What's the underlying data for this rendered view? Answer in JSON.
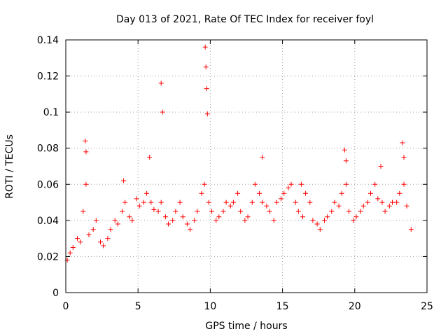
{
  "chart_data": {
    "type": "scatter",
    "title": "Day 013 of 2021, Rate Of TEC Index for receiver foyl",
    "xlabel": "GPS time / hours",
    "ylabel": "ROTI / TECUs",
    "xlim": [
      0,
      25
    ],
    "ylim": [
      0,
      0.14
    ],
    "xticks": [
      0,
      5,
      10,
      15,
      20,
      25
    ],
    "xtick_labels": [
      "0",
      "5",
      "10",
      "15",
      "20",
      "25"
    ],
    "yticks": [
      0,
      0.02,
      0.04,
      0.06,
      0.08,
      0.1,
      0.12,
      0.14
    ],
    "ytick_labels": [
      "0",
      "0.02",
      "0.04",
      "0.06",
      "0.08",
      "0.1",
      "0.12",
      "0.14"
    ],
    "grid": true,
    "marker": "+",
    "color": "#ff0000",
    "series": [
      {
        "name": "ROTI",
        "x": [
          0.1,
          0.3,
          0.5,
          0.8,
          1.0,
          1.2,
          1.4,
          1.6,
          1.9,
          2.1,
          2.4,
          2.6,
          2.9,
          3.1,
          3.4,
          3.6,
          3.9,
          4.1,
          4.4,
          4.6,
          4.9,
          5.1,
          5.4,
          5.6,
          5.9,
          6.1,
          6.4,
          6.6,
          6.9,
          7.1,
          7.4,
          7.6,
          7.9,
          8.1,
          8.4,
          8.6,
          8.9,
          9.1,
          9.4,
          9.6,
          9.9,
          10.1,
          10.4,
          10.6,
          10.9,
          11.1,
          11.4,
          11.6,
          11.9,
          12.1,
          12.4,
          12.6,
          12.9,
          13.1,
          13.4,
          13.6,
          13.9,
          14.1,
          14.4,
          14.6,
          14.9,
          15.1,
          15.4,
          15.6,
          15.9,
          16.1,
          16.4,
          16.6,
          16.9,
          17.1,
          17.4,
          17.6,
          17.9,
          18.1,
          18.4,
          18.6,
          18.9,
          19.1,
          19.4,
          19.6,
          19.9,
          20.1,
          20.4,
          20.6,
          20.9,
          21.1,
          21.4,
          21.6,
          21.9,
          22.1,
          22.4,
          22.6,
          22.9,
          23.1,
          23.4,
          23.6,
          23.9,
          1.35,
          1.4,
          6.6,
          6.7,
          9.65,
          9.7,
          9.75,
          9.8,
          13.6,
          19.3,
          19.4,
          21.8,
          23.3,
          23.4,
          5.8,
          4.0,
          16.3
        ],
        "y": [
          0.018,
          0.022,
          0.025,
          0.03,
          0.028,
          0.045,
          0.06,
          0.032,
          0.035,
          0.04,
          0.028,
          0.026,
          0.03,
          0.035,
          0.04,
          0.038,
          0.045,
          0.05,
          0.042,
          0.04,
          0.052,
          0.048,
          0.05,
          0.055,
          0.05,
          0.046,
          0.045,
          0.05,
          0.042,
          0.038,
          0.04,
          0.045,
          0.05,
          0.042,
          0.038,
          0.035,
          0.04,
          0.045,
          0.055,
          0.06,
          0.05,
          0.045,
          0.04,
          0.042,
          0.045,
          0.05,
          0.048,
          0.05,
          0.055,
          0.045,
          0.04,
          0.042,
          0.05,
          0.06,
          0.055,
          0.05,
          0.048,
          0.045,
          0.04,
          0.05,
          0.052,
          0.055,
          0.058,
          0.06,
          0.05,
          0.045,
          0.042,
          0.055,
          0.05,
          0.04,
          0.038,
          0.035,
          0.04,
          0.042,
          0.045,
          0.05,
          0.048,
          0.055,
          0.06,
          0.045,
          0.04,
          0.042,
          0.045,
          0.048,
          0.05,
          0.055,
          0.06,
          0.052,
          0.05,
          0.045,
          0.048,
          0.05,
          0.05,
          0.055,
          0.06,
          0.048,
          0.035,
          0.084,
          0.078,
          0.116,
          0.1,
          0.136,
          0.125,
          0.113,
          0.099,
          0.075,
          0.079,
          0.073,
          0.07,
          0.083,
          0.075,
          0.075,
          0.062,
          0.06
        ]
      }
    ]
  }
}
